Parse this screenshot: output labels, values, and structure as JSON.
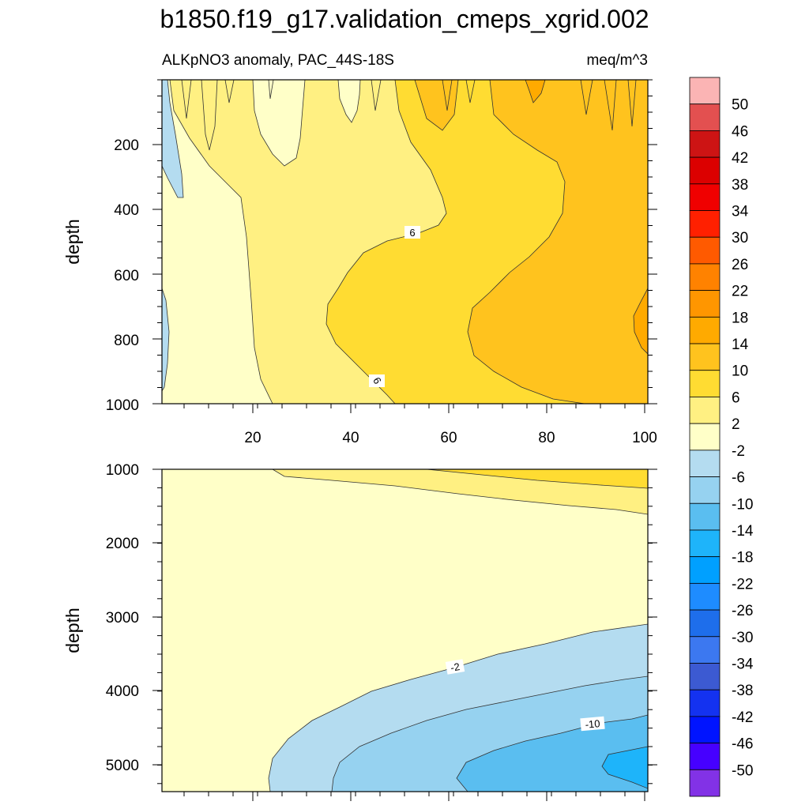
{
  "chart_data": {
    "type": "contour",
    "title": "b1850.f19_g17.validation_cmeps_xgrid.002",
    "subtitle_left": "ALKpNO3 anomaly, PAC_44S-18S",
    "subtitle_right": "meq/m^3",
    "colorbar": {
      "levels": [
        "50",
        "46",
        "42",
        "38",
        "34",
        "30",
        "26",
        "22",
        "18",
        "14",
        "10",
        "6",
        "2",
        "-2",
        "-6",
        "-10",
        "-14",
        "-18",
        "-22",
        "-26",
        "-30",
        "-34",
        "-38",
        "-42",
        "-46",
        "-50"
      ],
      "colors": [
        "#fbb4b4",
        "#e35050",
        "#cd1414",
        "#dc0000",
        "#f00000",
        "#ff2000",
        "#ff5a00",
        "#ff8200",
        "#ff9600",
        "#ffaa00",
        "#ffc31e",
        "#ffdc32",
        "#fff082",
        "#ffffc8",
        "#b4dcf0",
        "#96d2f0",
        "#5abef0",
        "#1eb4fa",
        "#00a0ff",
        "#1e8cff",
        "#1e6eeb",
        "#3c78f0",
        "#3c5ad2",
        "#1432f0",
        "#0014ff",
        "#4600ff",
        "#8232e6"
      ]
    },
    "panels": [
      {
        "name": "upper",
        "ylabel": "depth",
        "xlim": [
          1,
          101
        ],
        "ylim": [
          1000,
          0
        ],
        "xticks": [
          "20",
          "40",
          "60",
          "80",
          "100"
        ],
        "yticks": [
          "200",
          "400",
          "600",
          "800",
          "1000"
        ],
        "contour_labels": [
          "6",
          "6"
        ]
      },
      {
        "name": "lower",
        "ylabel": "depth",
        "xlim": [
          1,
          101
        ],
        "ylim": [
          5400,
          1000
        ],
        "xticks": [],
        "yticks": [
          "1000",
          "2000",
          "3000",
          "4000",
          "5000"
        ],
        "contour_labels": [
          "-2",
          "-10"
        ]
      }
    ]
  }
}
